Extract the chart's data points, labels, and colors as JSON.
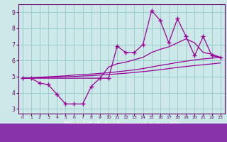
{
  "xlabel": "Windchill (Refroidissement éolien,°C)",
  "xlim": [
    -0.5,
    23.5
  ],
  "ylim": [
    2.7,
    9.5
  ],
  "xticks": [
    0,
    1,
    2,
    3,
    4,
    5,
    6,
    7,
    8,
    9,
    10,
    11,
    12,
    13,
    14,
    15,
    16,
    17,
    18,
    19,
    20,
    21,
    22,
    23
  ],
  "yticks": [
    3,
    4,
    5,
    6,
    7,
    8,
    9
  ],
  "data_line": [
    4.9,
    4.9,
    4.6,
    4.5,
    3.9,
    3.3,
    3.3,
    3.3,
    4.4,
    4.9,
    4.9,
    6.9,
    6.5,
    6.5,
    7.0,
    9.1,
    8.5,
    7.1,
    8.6,
    7.5,
    6.3,
    7.5,
    6.3,
    6.2
  ],
  "trend_upper": [
    4.9,
    4.9,
    4.9,
    4.9,
    4.9,
    4.9,
    4.9,
    4.9,
    4.9,
    4.9,
    5.6,
    5.8,
    5.9,
    6.05,
    6.2,
    6.5,
    6.7,
    6.85,
    7.1,
    7.35,
    7.1,
    6.5,
    6.4,
    6.2
  ],
  "trend_mid": [
    4.9,
    4.93,
    4.96,
    4.99,
    5.02,
    5.05,
    5.1,
    5.13,
    5.16,
    5.2,
    5.24,
    5.3,
    5.36,
    5.42,
    5.5,
    5.6,
    5.7,
    5.78,
    5.88,
    5.96,
    6.04,
    6.1,
    6.15,
    6.2
  ],
  "trend_lower": [
    4.9,
    4.91,
    4.93,
    4.95,
    4.97,
    4.99,
    5.01,
    5.04,
    5.06,
    5.1,
    5.13,
    5.17,
    5.21,
    5.26,
    5.31,
    5.37,
    5.43,
    5.5,
    5.57,
    5.63,
    5.69,
    5.74,
    5.79,
    5.85
  ],
  "line_color": "#990099",
  "bg_color": "#cce8e8",
  "grid_color": "#99cccc",
  "axis_color": "#660066",
  "tick_color": "#660066",
  "label_color": "#660066"
}
